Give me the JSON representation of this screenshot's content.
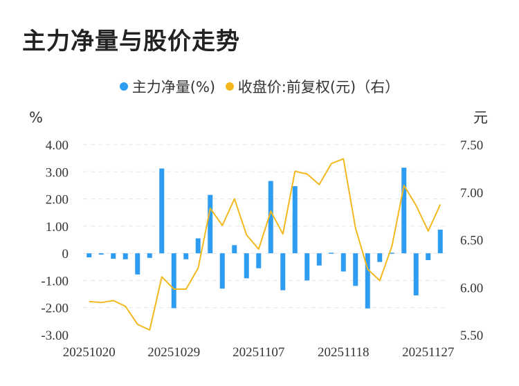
{
  "title": "主力净量与股价走势",
  "legend": [
    {
      "label": "主力净量(%)",
      "color": "#2e9cf0"
    },
    {
      "label": "收盘价:前复权(元)（右）",
      "color": "#f2b81d"
    }
  ],
  "chart_data": {
    "type": "bar+line",
    "left_unit": "%",
    "right_unit": "元",
    "left_ticks": [
      "4.00",
      "3.00",
      "2.00",
      "1.00",
      "0",
      "-1.00",
      "-2.00",
      "-3.00"
    ],
    "right_ticks": [
      "7.50",
      "7.00",
      "6.50",
      "6.00",
      "5.50"
    ],
    "x_tick_labels": [
      "20251020",
      "20251029",
      "20251107",
      "20251118",
      "20251127"
    ],
    "ylim_left": [
      -3,
      4
    ],
    "ylim_right": [
      5.5,
      7.5
    ],
    "grid": true,
    "legend_position": "top",
    "series": [
      {
        "name": "主力净量(%)",
        "type": "bar",
        "axis": "left",
        "color": "#2e9cf0",
        "values": [
          -0.15,
          -0.05,
          -0.2,
          -0.22,
          -0.78,
          -0.17,
          3.12,
          -2.02,
          -0.22,
          0.55,
          2.15,
          -1.3,
          0.3,
          -0.92,
          -0.55,
          2.66,
          -1.36,
          2.47,
          -1.0,
          -0.45,
          0.02,
          -0.67,
          -1.2,
          -2.03,
          -0.32,
          0.02,
          3.15,
          -1.55,
          -0.25,
          0.87
        ]
      },
      {
        "name": "收盘价:前复权(元)（右）",
        "type": "line",
        "axis": "right",
        "color": "#f2b81d",
        "values": [
          5.85,
          5.84,
          5.86,
          5.8,
          5.61,
          5.55,
          6.11,
          5.98,
          5.98,
          6.2,
          6.83,
          6.65,
          6.93,
          6.55,
          6.4,
          6.8,
          6.56,
          7.22,
          7.19,
          7.08,
          7.3,
          7.35,
          6.62,
          6.19,
          6.07,
          6.43,
          7.07,
          6.86,
          6.59,
          6.87
        ]
      }
    ]
  }
}
